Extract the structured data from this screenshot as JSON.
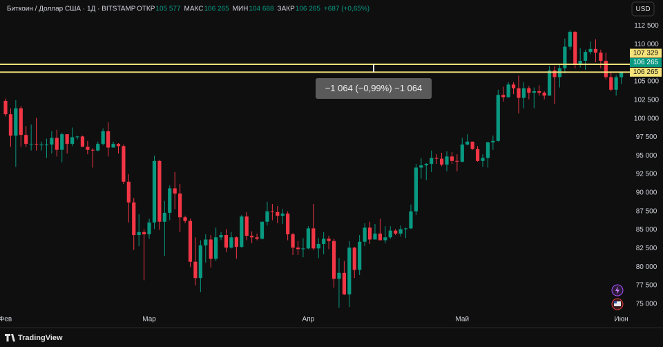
{
  "header": {
    "symbol": "Биткоин / Доллар США · 1Д · BITSTAMP",
    "stats": [
      {
        "label": "ОТКР",
        "value": "105 577"
      },
      {
        "label": "МАКС",
        "value": "106 265"
      },
      {
        "label": "МИН",
        "value": "104 688"
      },
      {
        "label": "ЗАКР",
        "value": "106 265"
      }
    ],
    "change": "+687 (+0,65%)",
    "currency_button": "USD"
  },
  "footer": {
    "brand": "TradingView"
  },
  "chart_data": {
    "type": "candlestick",
    "up_color": "#089981",
    "down_color": "#f23645",
    "grid": false,
    "categories": [
      "Фев",
      null,
      null,
      null,
      null,
      null,
      null,
      null,
      null,
      null,
      null,
      null,
      null,
      null,
      null,
      null,
      null,
      null,
      null,
      null,
      null,
      null,
      null,
      null,
      null,
      null,
      null,
      null,
      "Мар",
      null,
      null,
      null,
      null,
      null,
      null,
      null,
      null,
      null,
      null,
      null,
      null,
      null,
      null,
      null,
      null,
      null,
      null,
      null,
      null,
      null,
      null,
      null,
      null,
      null,
      null,
      null,
      null,
      null,
      null,
      "Апр",
      null,
      null,
      null,
      null,
      null,
      null,
      null,
      null,
      null,
      null,
      null,
      null,
      null,
      null,
      null,
      null,
      null,
      null,
      null,
      null,
      null,
      null,
      null,
      null,
      null,
      null,
      null,
      null,
      null,
      "Май",
      null,
      null,
      null,
      null,
      null,
      null,
      null,
      null,
      null,
      null,
      null,
      null,
      null,
      null,
      null,
      null,
      null,
      null,
      null,
      null,
      null,
      null,
      null,
      null,
      null,
      null,
      null,
      null,
      null,
      null,
      "Июн"
    ],
    "open": [
      102400,
      100600,
      97700,
      101400,
      97800,
      96600,
      96600,
      96500,
      96500,
      96500,
      97400,
      95800,
      97900,
      96600,
      97500,
      97600,
      96200,
      95800,
      95700,
      96600,
      98300,
      96100,
      96600,
      96300,
      91500,
      88700,
      84300,
      84700,
      84400,
      86000,
      94300,
      86100,
      87300,
      90600,
      89900,
      86700,
      86200,
      80700,
      78500,
      82900,
      83700,
      81100,
      84000,
      84300,
      82600,
      84000,
      82700,
      86800,
      84200,
      84000,
      83800,
      86100,
      87500,
      87400,
      86900,
      87200,
      84400,
      82600,
      82400,
      82500,
      85200,
      82500,
      83100,
      83800,
      83500,
      78400,
      79200,
      76300,
      82600,
      79600,
      83400,
      85300,
      83700,
      84500,
      83600,
      84000,
      84900,
      84500,
      85100,
      85200,
      87500,
      93400,
      93700,
      93900,
      94700,
      94600,
      93800,
      94900,
      94300,
      94200,
      96500,
      96900,
      95900,
      94300,
      94700,
      96800,
      97000,
      103200,
      102900,
      104600,
      104100,
      102800,
      104100,
      103500,
      103700,
      103500,
      103100,
      106500,
      105600,
      106800,
      109700,
      111700,
      107300,
      107800,
      109000,
      109400,
      108900,
      107800,
      105600,
      103900,
      105577
    ],
    "high": [
      102700,
      101400,
      102500,
      101700,
      99000,
      99200,
      100100,
      96900,
      97300,
      98300,
      98500,
      98100,
      97900,
      98800,
      97700,
      97700,
      97000,
      96000,
      96900,
      98700,
      99500,
      96900,
      96700,
      96500,
      92500,
      89300,
      87100,
      85100,
      86500,
      95000,
      94400,
      88900,
      91000,
      92800,
      91200,
      86900,
      86500,
      84000,
      83600,
      84400,
      84300,
      85300,
      84700,
      85100,
      84700,
      84100,
      87000,
      87400,
      84800,
      84500,
      86100,
      88800,
      88500,
      88200,
      87800,
      87500,
      84600,
      83500,
      83900,
      85500,
      88500,
      83900,
      84700,
      84200,
      83800,
      81200,
      80800,
      83500,
      82700,
      84300,
      85900,
      86100,
      85800,
      86500,
      85500,
      85500,
      85100,
      85600,
      85300,
      88400,
      93900,
      94700,
      94000,
      95700,
      95200,
      95400,
      95600,
      95500,
      95200,
      97400,
      97900,
      96900,
      96300,
      95200,
      96900,
      97700,
      103900,
      104300,
      104900,
      104900,
      105800,
      104900,
      104400,
      104200,
      104500,
      103700,
      107100,
      107100,
      107300,
      110800,
      111900,
      111800,
      109500,
      109300,
      110400,
      110700,
      109300,
      108900,
      106300,
      105900,
      106265
    ],
    "low": [
      100300,
      96200,
      93500,
      96200,
      96200,
      95700,
      95700,
      95700,
      94700,
      95300,
      94900,
      94100,
      95300,
      96300,
      97200,
      96200,
      95200,
      93400,
      95600,
      96400,
      94900,
      96100,
      95300,
      91200,
      86000,
      82300,
      82800,
      78200,
      83800,
      85100,
      85000,
      81500,
      86300,
      87800,
      84700,
      85900,
      80000,
      77500,
      76600,
      80600,
      79900,
      80800,
      83600,
      82000,
      82500,
      81100,
      82600,
      83600,
      83200,
      83600,
      83700,
      85600,
      86300,
      85900,
      85800,
      83600,
      81600,
      81600,
      81300,
      82400,
      82300,
      81200,
      81700,
      82400,
      77200,
      74500,
      76200,
      74600,
      78500,
      78900,
      82800,
      83100,
      83700,
      83600,
      83200,
      83800,
      84300,
      84100,
      83900,
      85100,
      87000,
      91900,
      91700,
      92800,
      93900,
      93600,
      92900,
      93900,
      92900,
      94100,
      96400,
      95800,
      94200,
      93500,
      93400,
      95800,
      96900,
      102300,
      102800,
      103300,
      100700,
      101400,
      102600,
      101400,
      103100,
      102600,
      103100,
      102000,
      104200,
      106100,
      109300,
      106800,
      106900,
      106600,
      108700,
      107600,
      106800,
      105300,
      103700,
      103100,
      104688
    ],
    "close": [
      100600,
      97700,
      101400,
      97800,
      96600,
      96600,
      96500,
      96500,
      96500,
      97400,
      95800,
      97900,
      96600,
      97500,
      97600,
      96200,
      95800,
      95700,
      96600,
      98300,
      96100,
      96600,
      96300,
      91500,
      88700,
      84300,
      84700,
      84400,
      86000,
      94300,
      86100,
      87300,
      90600,
      89900,
      86700,
      86200,
      80700,
      78500,
      82900,
      83700,
      81100,
      84000,
      84300,
      82600,
      84000,
      82700,
      86800,
      84200,
      84000,
      83800,
      86100,
      87500,
      87400,
      86900,
      87200,
      84400,
      82600,
      82400,
      82500,
      85200,
      82500,
      83100,
      83800,
      83500,
      78400,
      79200,
      76300,
      82600,
      79600,
      83400,
      85300,
      83700,
      84500,
      83600,
      84000,
      84900,
      84500,
      85100,
      85200,
      87500,
      93400,
      93700,
      93900,
      94700,
      94600,
      93800,
      94900,
      94300,
      94200,
      96500,
      96900,
      95900,
      94300,
      94700,
      96800,
      97000,
      103200,
      102900,
      104600,
      104100,
      102800,
      104100,
      103500,
      103700,
      103500,
      103100,
      106500,
      105600,
      106800,
      109700,
      111700,
      107300,
      107800,
      109000,
      109400,
      108900,
      107800,
      105600,
      103900,
      105577,
      106265
    ],
    "ylim": [
      72000,
      116000
    ],
    "yticks": [
      {
        "value": 75000,
        "label": "75 000"
      },
      {
        "value": 77500,
        "label": "77 500"
      },
      {
        "value": 80000,
        "label": "80 000"
      },
      {
        "value": 82500,
        "label": "82 500"
      },
      {
        "value": 85000,
        "label": "85 000"
      },
      {
        "value": 87500,
        "label": "87 500"
      },
      {
        "value": 90000,
        "label": "90 000"
      },
      {
        "value": 92500,
        "label": "92 500"
      },
      {
        "value": 95000,
        "label": "95 000"
      },
      {
        "value": 97500,
        "label": "97 500"
      },
      {
        "value": 100000,
        "label": "100 000"
      },
      {
        "value": 102500,
        "label": "102 500"
      },
      {
        "value": 105000,
        "label": "105 000"
      },
      {
        "value": 107500,
        "label": "107 500"
      },
      {
        "value": 110000,
        "label": "110 000"
      },
      {
        "value": 112500,
        "label": "112 500"
      }
    ],
    "price_lines": [
      {
        "value": 107329,
        "label": "107 329"
      },
      {
        "value": 106265,
        "label": "106 265"
      }
    ],
    "price_line_color": "#f5e27a",
    "last_price": {
      "value": 106265,
      "label": "106 265"
    },
    "measure": {
      "label": "−1 064 (−0,99%) −1 064"
    }
  }
}
